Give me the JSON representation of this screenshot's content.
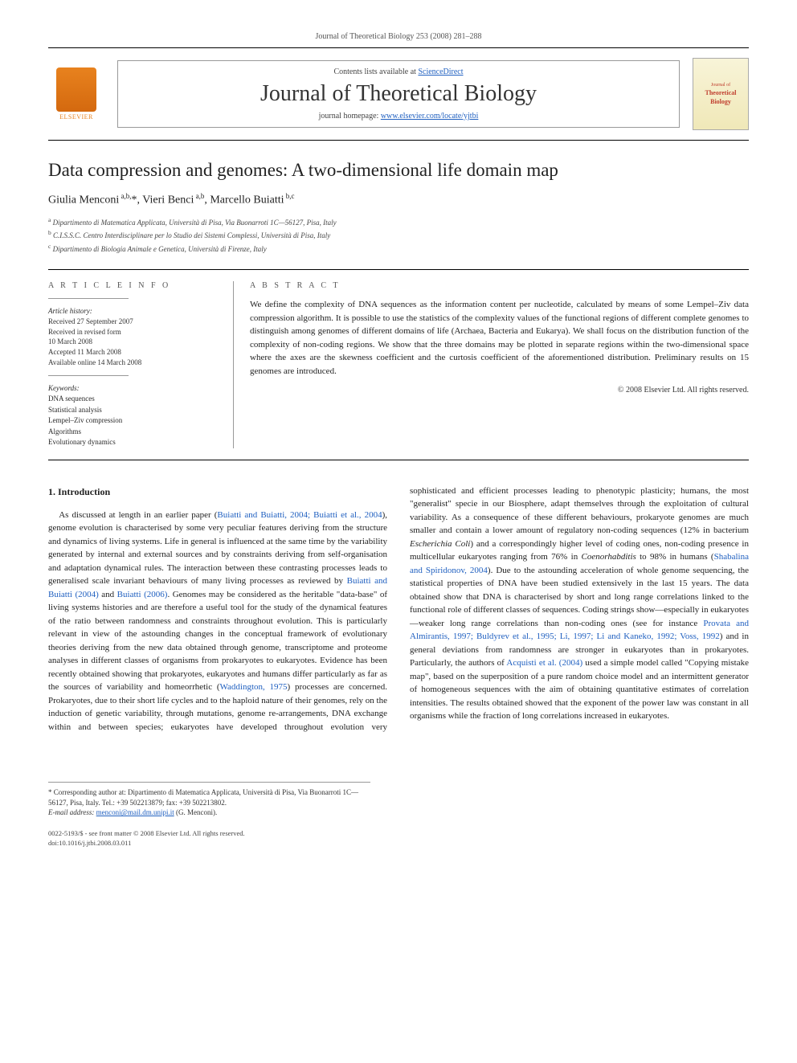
{
  "journal_header": "Journal of Theoretical Biology 253 (2008) 281–288",
  "contents_prefix": "Contents lists available at ",
  "contents_link": "ScienceDirect",
  "journal_title": "Journal of Theoretical Biology",
  "homepage_prefix": "journal homepage: ",
  "homepage_link": "www.elsevier.com/locate/yjtbi",
  "cover": {
    "line1": "Journal of",
    "line2": "Theoretical",
    "line3": "Biology"
  },
  "elsevier_label": "ELSEVIER",
  "title": "Data compression and genomes: A two-dimensional life domain map",
  "authors_line": "Giulia Menconi a,b,*, Vieri Benci a,b, Marcello Buiatti b,c",
  "affiliations": {
    "a": "a Dipartimento di Matematica Applicata, Università di Pisa, Via Buonarroti 1C—56127, Pisa, Italy",
    "b": "b C.I.S.S.C. Centro Interdisciplinare per lo Studio dei Sistemi Complessi, Università di Pisa, Italy",
    "c": "c Dipartimento di Biologia Animale e Genetica, Università di Firenze, Italy"
  },
  "article_info": {
    "heading": "A R T I C L E   I N F O",
    "history_heading": "Article history:",
    "history": "Received 27 September 2007\nReceived in revised form\n10 March 2008\nAccepted 11 March 2008\nAvailable online 14 March 2008",
    "keywords_heading": "Keywords:",
    "keywords": "DNA sequences\nStatistical analysis\nLempel–Ziv compression\nAlgorithms\nEvolutionary dynamics"
  },
  "abstract": {
    "heading": "A B S T R A C T",
    "text": "We define the complexity of DNA sequences as the information content per nucleotide, calculated by means of some Lempel–Ziv data compression algorithm. It is possible to use the statistics of the complexity values of the functional regions of different complete genomes to distinguish among genomes of different domains of life (Archaea, Bacteria and Eukarya). We shall focus on the distribution function of the complexity of non-coding regions. We show that the three domains may be plotted in separate regions within the two-dimensional space where the axes are the skewness coefficient and the curtosis coefficient of the aforementioned distribution. Preliminary results on 15 genomes are introduced.",
    "copyright": "© 2008 Elsevier Ltd. All rights reserved."
  },
  "section1_heading": "1.  Introduction",
  "body_p1_a": "As discussed at length in an earlier paper (",
  "body_p1_link1": "Buiatti and Buiatti, 2004; Buiatti et al., 2004",
  "body_p1_b": "), genome evolution is characterised by some very peculiar features deriving from the structure and dynamics of living systems. Life in general is influenced at the same time by the variability generated by internal and external sources and by constraints deriving from self-organisation and adaptation dynamical rules. The interaction between these contrasting processes leads to generalised scale invariant behaviours of many living processes as reviewed by ",
  "body_p1_link2": "Buiatti and Buiatti (2004)",
  "body_p1_c": " and ",
  "body_p1_link3": "Buiatti (2006)",
  "body_p1_d": ". Genomes may be considered as the heritable \"data-base\" of living systems histories and are therefore a useful tool for the study of the dynamical features of the ratio between randomness and constraints throughout evolution. This is particularly relevant in view of the astounding changes in the conceptual framework of evolutionary theories deriving from the new data obtained through genome, transcriptome and proteome analyses in different classes of organisms from prokaryotes to eukaryotes. Evidence has been recently obtained showing that prokaryotes, eukaryotes and humans differ particularly as far as the sources of variability and homeorrhetic (",
  "body_p1_link4": "Waddington, 1975",
  "body_p1_e": ") processes are concerned. Prokaryotes, due to their short life cycles and to the haploid nature of their genomes, rely on the induction of genetic variability, through mutations, genome re-arrangements, DNA exchange within and between species; eukaryotes have developed throughout evolution very sophisticated and efficient processes leading to phenotypic plasticity; humans, the most \"generalist\" specie in our Biosphere, adapt themselves through the exploitation of cultural variability. As a consequence of these different behaviours, prokaryote genomes are much smaller and contain a lower amount of regulatory non-coding sequences (12% in bacterium ",
  "body_p1_em1": "Escherichia Coli",
  "body_p1_f": ") and a correspondingly higher level of coding ones, non-coding presence in multicellular eukaryotes ranging from 76% in ",
  "body_p1_em2": "Coenorhabditis",
  "body_p1_g": " to 98% in humans (",
  "body_p1_link5": "Shabalina and Spiridonov, 2004",
  "body_p1_h": "). Due to the astounding acceleration of whole genome sequencing, the statistical properties of DNA have been studied extensively in the last 15 years. The data obtained show that DNA is characterised by short and long range correlations linked to the functional role of different classes of sequences. Coding strings show—especially in eukaryotes—weaker long range correlations than non-coding ones (see for instance ",
  "body_p1_link6": "Provata and Almirantis, 1997; Buldyrev et al., 1995; Li, 1997; Li and Kaneko, 1992; Voss, 1992",
  "body_p1_i": ") and in general deviations from randomness are stronger in eukaryotes than in prokaryotes. Particularly, the authors of ",
  "body_p1_link7": "Acquisti et al. (2004)",
  "body_p1_j": " used a simple model called \"Copying mistake map\", based on the superposition of a pure random choice model and an intermittent generator of homogeneous sequences with the aim of obtaining quantitative estimates of correlation intensities. The results obtained showed that the exponent of the power law was constant in all organisms while the fraction of long correlations increased in eukaryotes.",
  "footnote_corresponding": "* Corresponding author at: Dipartimento di Matematica Applicata, Università di Pisa, Via Buonarroti 1C—56127, Pisa, Italy. Tel.: +39 502213879; fax: +39 502213802.",
  "footnote_email_prefix": "E-mail address: ",
  "footnote_email": "menconi@mail.dm.unipi.it",
  "footnote_email_suffix": " (G. Menconi).",
  "bottom": {
    "issn": "0022-5193/$ - see front matter © 2008 Elsevier Ltd. All rights reserved.",
    "doi": "doi:10.1016/j.jtbi.2008.03.011"
  }
}
